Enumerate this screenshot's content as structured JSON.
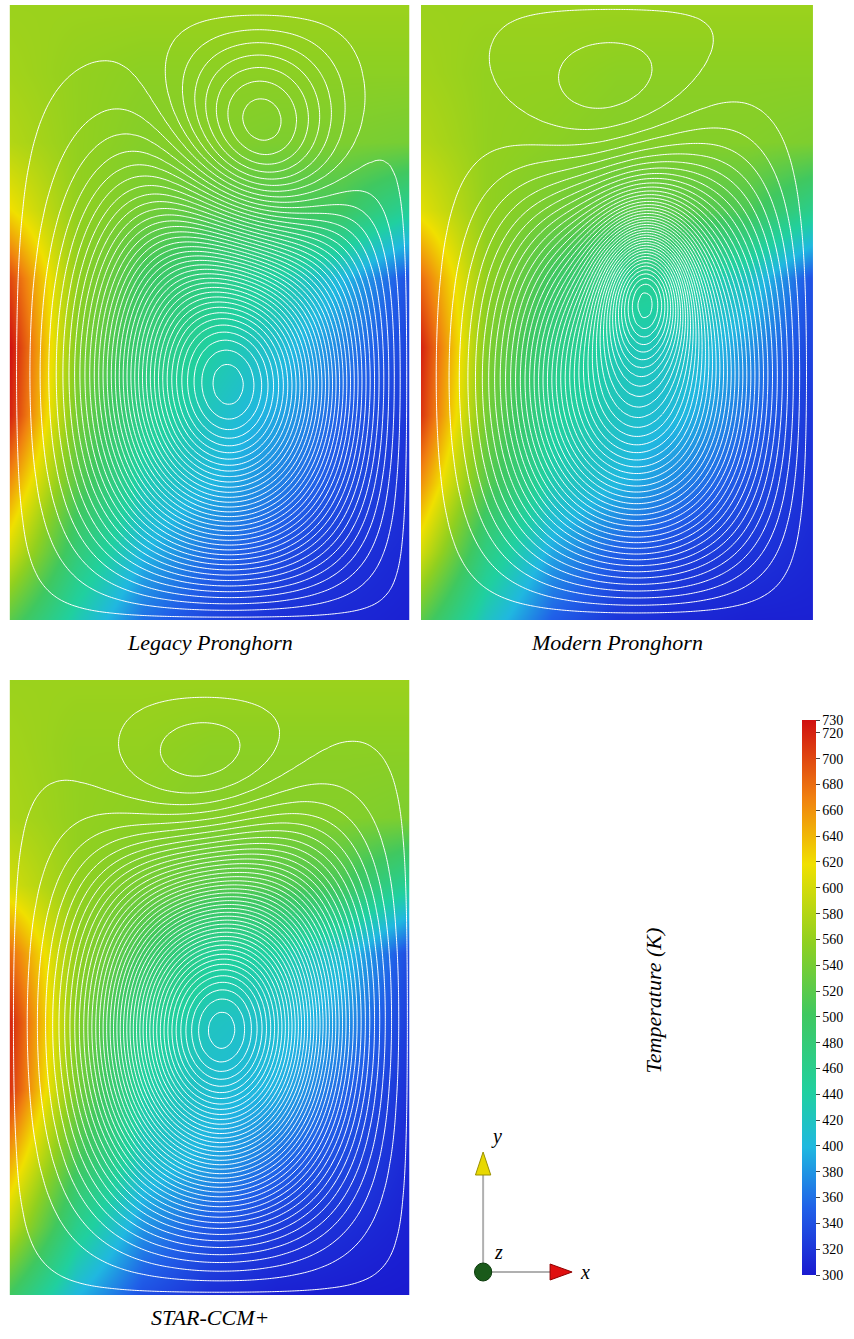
{
  "chart_data": {
    "type": "heatmap",
    "tick_labels": false,
    "colorbar_title": "Temperature (K)",
    "color_range": [
      300,
      730
    ],
    "color_ticks": [
      300,
      320,
      340,
      360,
      380,
      400,
      420,
      440,
      460,
      480,
      500,
      520,
      540,
      560,
      580,
      600,
      620,
      640,
      660,
      680,
      700,
      720,
      730
    ],
    "axis_labels": [
      "x",
      "y",
      "z"
    ],
    "panels": [
      {
        "title": "Legacy Pronghorn",
        "temperature": [
          [
            520,
            430,
            360,
            330,
            315,
            310,
            305
          ],
          [
            600,
            480,
            400,
            360,
            340,
            320,
            310
          ],
          [
            660,
            520,
            430,
            400,
            370,
            340,
            315
          ],
          [
            720,
            540,
            460,
            420,
            390,
            350,
            320
          ],
          [
            730,
            550,
            480,
            440,
            410,
            370,
            330
          ],
          [
            700,
            560,
            500,
            470,
            440,
            400,
            340
          ],
          [
            620,
            560,
            540,
            520,
            510,
            500,
            450
          ],
          [
            580,
            560,
            550,
            550,
            545,
            545,
            540
          ],
          [
            570,
            560,
            555,
            555,
            555,
            555,
            555
          ],
          [
            565,
            565,
            565,
            565,
            565,
            565,
            565
          ]
        ],
        "vortices": [
          {
            "x": 0.6,
            "y": 0.3,
            "strength": 1.0,
            "radius": 0.45
          },
          {
            "x": 0.65,
            "y": 0.82,
            "strength": -0.6,
            "radius": 0.25
          }
        ]
      },
      {
        "title": "Modern Pronghorn",
        "temperature": [
          [
            520,
            420,
            350,
            320,
            310,
            305,
            305
          ],
          [
            600,
            470,
            390,
            350,
            330,
            320,
            310
          ],
          [
            660,
            520,
            430,
            400,
            370,
            340,
            315
          ],
          [
            710,
            540,
            450,
            420,
            400,
            360,
            320
          ],
          [
            720,
            550,
            470,
            430,
            420,
            380,
            330
          ],
          [
            680,
            560,
            500,
            460,
            450,
            420,
            340
          ],
          [
            610,
            560,
            540,
            520,
            520,
            510,
            460
          ],
          [
            580,
            560,
            555,
            550,
            550,
            550,
            545
          ],
          [
            570,
            560,
            560,
            555,
            555,
            555,
            555
          ],
          [
            565,
            565,
            565,
            565,
            565,
            565,
            565
          ]
        ],
        "vortices": [
          {
            "x": 0.6,
            "y": 0.3,
            "strength": 1.0,
            "radius": 0.45
          },
          {
            "x": 0.58,
            "y": 0.55,
            "strength": 0.5,
            "radius": 0.12
          },
          {
            "x": 0.5,
            "y": 0.88,
            "strength": -0.3,
            "radius": 0.3
          }
        ]
      },
      {
        "title": "STAR-CCM+",
        "temperature": [
          [
            500,
            400,
            340,
            315,
            305,
            302,
            300
          ],
          [
            590,
            460,
            380,
            345,
            325,
            315,
            305
          ],
          [
            650,
            510,
            420,
            390,
            360,
            335,
            310
          ],
          [
            710,
            540,
            440,
            410,
            395,
            355,
            315
          ],
          [
            720,
            550,
            460,
            420,
            410,
            380,
            325
          ],
          [
            680,
            560,
            500,
            450,
            440,
            410,
            335
          ],
          [
            600,
            560,
            540,
            520,
            515,
            505,
            450
          ],
          [
            575,
            560,
            555,
            550,
            550,
            550,
            545
          ],
          [
            570,
            560,
            560,
            555,
            555,
            555,
            555
          ],
          [
            565,
            565,
            565,
            565,
            565,
            565,
            565
          ]
        ],
        "vortices": [
          {
            "x": 0.55,
            "y": 0.42,
            "strength": 1.0,
            "radius": 0.4
          },
          {
            "x": 0.5,
            "y": 0.85,
            "strength": -0.4,
            "radius": 0.3
          }
        ]
      }
    ]
  }
}
